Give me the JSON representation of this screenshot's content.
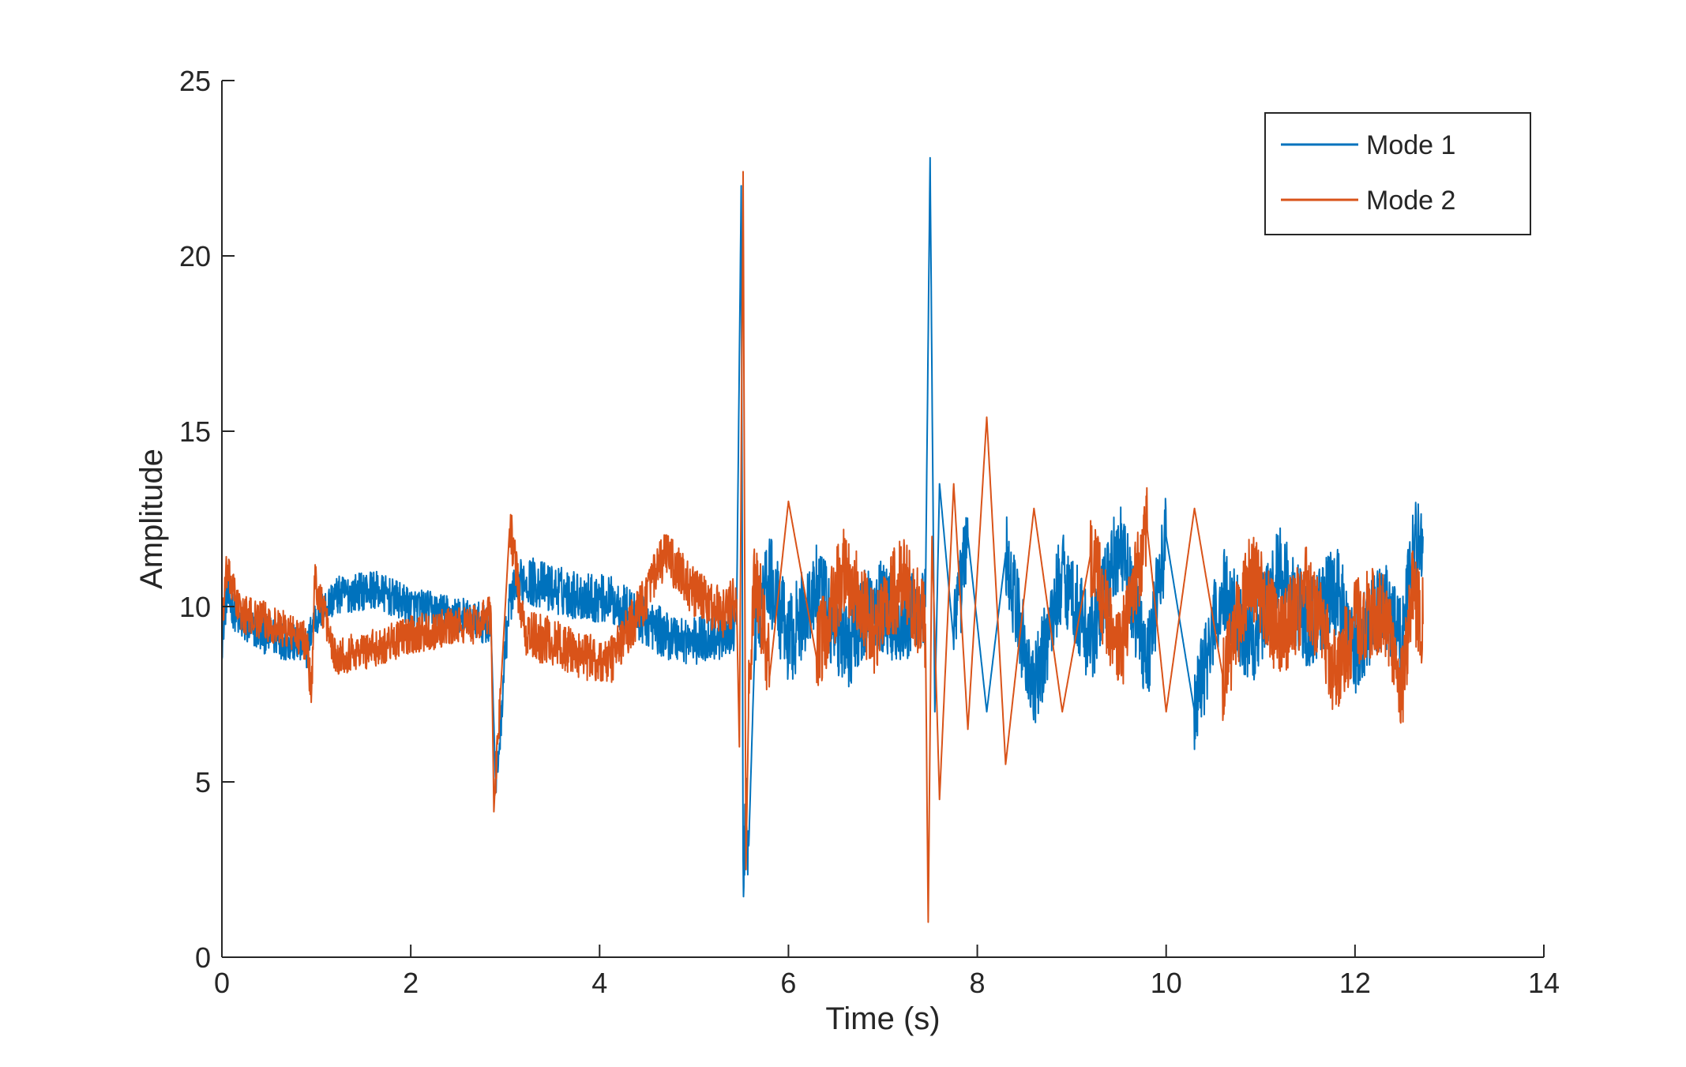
{
  "chart_data": {
    "type": "line",
    "title": "",
    "xlabel": "Time (s)",
    "ylabel": "Amplitude",
    "xlim": [
      0,
      14
    ],
    "ylim": [
      0,
      25
    ],
    "xticks": [
      "0",
      "2",
      "4",
      "6",
      "8",
      "10",
      "12",
      "14"
    ],
    "yticks": [
      "0",
      "5",
      "10",
      "15",
      "20",
      "25"
    ],
    "grid": false,
    "legend_position": "top-right",
    "series": [
      {
        "name": "Mode 1",
        "color": "#0072BD",
        "x": [
          0,
          0.05,
          0.2,
          0.45,
          0.7,
          0.9,
          0.97,
          1.2,
          1.6,
          2.0,
          2.4,
          2.7,
          2.85,
          2.9,
          2.95,
          3.0,
          3.05,
          3.2,
          3.5,
          3.8,
          4.1,
          4.4,
          4.7,
          5.0,
          5.3,
          5.45,
          5.5,
          5.52,
          5.55,
          5.58,
          5.65,
          5.8,
          6.0,
          6.3,
          6.6,
          6.9,
          7.2,
          7.45,
          7.5,
          7.55,
          7.6,
          7.75,
          7.9,
          8.1,
          8.3,
          8.6,
          8.9,
          9.2,
          9.5,
          9.8,
          10.0,
          10.3,
          10.6,
          10.9,
          11.2,
          11.5,
          11.8,
          12.0,
          12.3,
          12.5,
          12.6,
          12.72
        ],
        "y": [
          9.0,
          10.3,
          9.5,
          9.2,
          9.0,
          8.8,
          9.6,
          10.3,
          10.5,
          10.0,
          9.8,
          9.6,
          9.4,
          4.8,
          6.5,
          8.8,
          10.2,
          10.8,
          10.5,
          10.3,
          10.2,
          9.7,
          9.2,
          9.0,
          9.2,
          9.5,
          22.0,
          2.0,
          4.0,
          3.2,
          9.5,
          10.8,
          9.0,
          10.5,
          8.8,
          10.2,
          9.5,
          10.0,
          22.8,
          7.0,
          13.5,
          9.0,
          12.0,
          7.0,
          11.5,
          7.5,
          11.0,
          9.0,
          11.8,
          8.5,
          12.0,
          7.0,
          10.5,
          9.0,
          11.0,
          9.5,
          10.5,
          8.8,
          10.2,
          9.0,
          11.5,
          12.0
        ]
      },
      {
        "name": "Mode 2",
        "color": "#D95319",
        "x": [
          0,
          0.05,
          0.2,
          0.45,
          0.7,
          0.9,
          0.95,
          0.98,
          1.2,
          1.6,
          2.0,
          2.4,
          2.7,
          2.85,
          2.88,
          2.95,
          3.05,
          3.2,
          3.5,
          3.8,
          4.1,
          4.4,
          4.7,
          5.0,
          5.3,
          5.45,
          5.48,
          5.52,
          5.55,
          5.58,
          5.65,
          5.8,
          6.0,
          6.3,
          6.6,
          6.9,
          7.2,
          7.45,
          7.48,
          7.52,
          7.6,
          7.75,
          7.9,
          8.1,
          8.3,
          8.6,
          8.9,
          9.2,
          9.5,
          9.8,
          10.0,
          10.3,
          10.6,
          10.9,
          11.2,
          11.5,
          11.8,
          12.0,
          12.3,
          12.5,
          12.6,
          12.72
        ],
        "y": [
          9.5,
          11.0,
          9.8,
          9.6,
          9.3,
          9.0,
          7.4,
          10.8,
          8.6,
          8.8,
          9.2,
          9.4,
          9.5,
          9.8,
          4.3,
          7.5,
          12.4,
          9.2,
          9.0,
          8.6,
          8.4,
          9.8,
          11.5,
          10.4,
          9.8,
          10.2,
          6.0,
          22.4,
          2.5,
          7.5,
          11.0,
          8.0,
          13.0,
          8.5,
          11.2,
          9.2,
          10.8,
          9.5,
          1.0,
          12.0,
          4.5,
          13.5,
          6.5,
          15.4,
          5.5,
          12.8,
          7.0,
          11.5,
          8.5,
          12.2,
          7.0,
          12.8,
          8.0,
          11.0,
          9.0,
          10.5,
          8.0,
          9.5,
          10.0,
          7.5,
          10.5,
          9.5
        ]
      }
    ]
  }
}
